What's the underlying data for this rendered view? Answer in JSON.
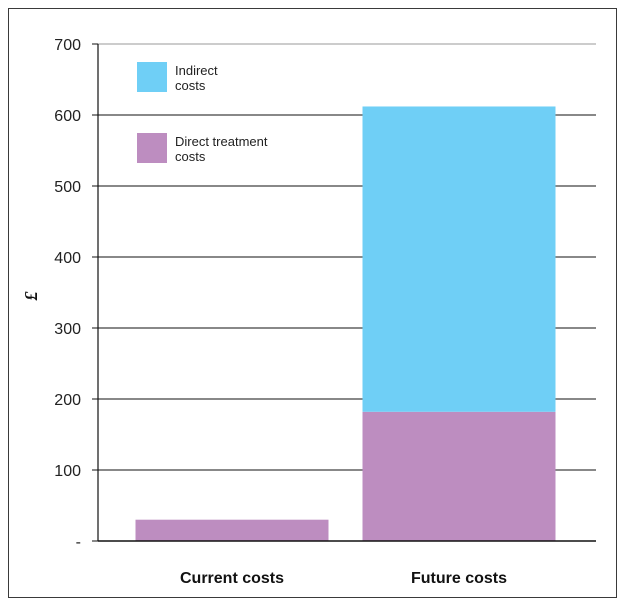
{
  "chart_data": {
    "type": "bar",
    "stacked": true,
    "ylabel": "£",
    "ylim": [
      0,
      700
    ],
    "ytick_step": 100,
    "ytick_labels": [
      "-",
      "100",
      "200",
      "300",
      "400",
      "500",
      "600",
      "700"
    ],
    "categories": [
      "Current costs",
      "Future costs"
    ],
    "series": [
      {
        "name": "Direct treatment costs",
        "legend_lines": [
          "Direct treatment",
          "costs"
        ],
        "values": [
          30,
          182
        ],
        "color": "#bd8dc0"
      },
      {
        "name": "Indirect costs",
        "legend_lines": [
          "Indirect",
          "costs"
        ],
        "values": [
          0,
          430
        ],
        "color": "#6fcff6"
      }
    ],
    "legend_order": [
      1,
      0
    ],
    "legend_position": "top-left",
    "grid": true
  }
}
